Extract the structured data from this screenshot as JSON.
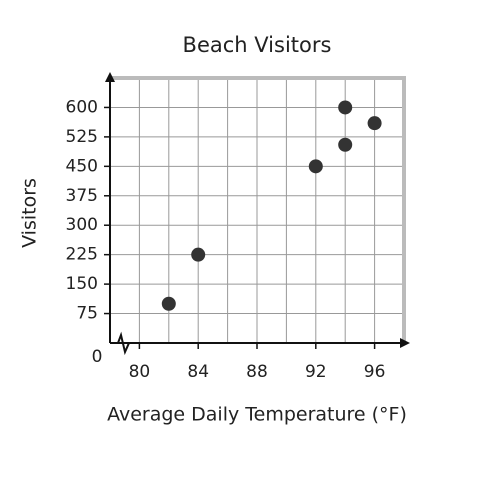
{
  "chart_data": {
    "type": "scatter",
    "title": "Beach Visitors",
    "x_label": "Average Daily Temperature (°F)",
    "y_label": "Visitors",
    "origin_label": "0",
    "x": [
      82,
      84,
      92,
      94,
      94,
      96
    ],
    "values": [
      100,
      225,
      450,
      600,
      505,
      560
    ],
    "color": "#333333",
    "xlim": [
      78,
      98
    ],
    "xticks": [
      80,
      84,
      88,
      92,
      96
    ],
    "ylim": [
      0,
      675
    ],
    "yticks": [
      75,
      150,
      225,
      300,
      375,
      450,
      525,
      600
    ],
    "grid": true
  }
}
